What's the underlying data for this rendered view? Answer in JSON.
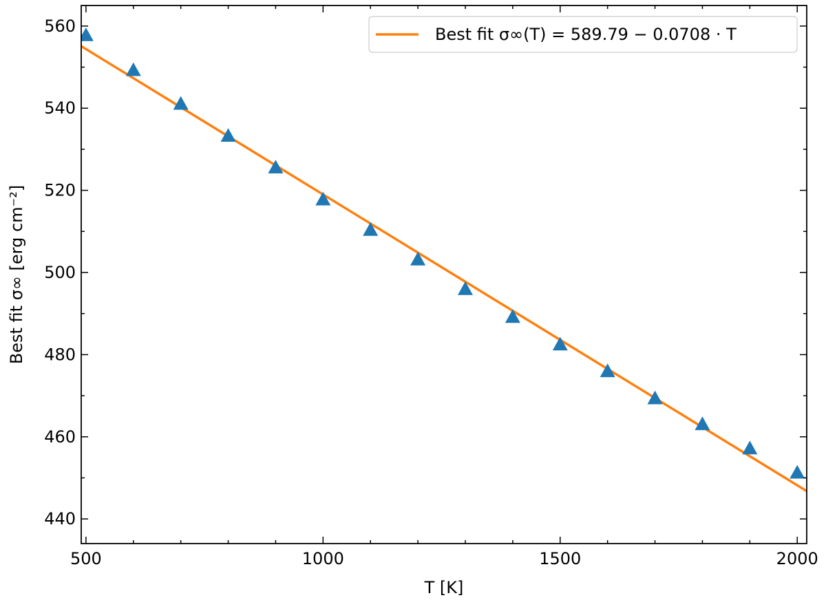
{
  "chart_data": {
    "type": "scatter",
    "xlabel": "T [K]",
    "ylabel": "Best fit σ∞ [erg cm⁻²]",
    "xlim": [
      490,
      2020
    ],
    "ylim": [
      434,
      565
    ],
    "xticks": [
      500,
      1000,
      1500,
      2000
    ],
    "yticks": [
      440,
      460,
      480,
      500,
      520,
      540,
      560
    ],
    "grid": false,
    "legend_position": "top-right",
    "series": [
      {
        "type": "scatter",
        "marker": "triangle",
        "color": "#1f77b4",
        "x": [
          500,
          600,
          700,
          800,
          900,
          1000,
          1100,
          1200,
          1300,
          1400,
          1500,
          1600,
          1700,
          1800,
          1900,
          2000
        ],
        "y": [
          557.8,
          549.3,
          541.1,
          533.3,
          525.6,
          517.8,
          510.4,
          503.2,
          496.0,
          489.2,
          482.5,
          476.0,
          469.4,
          463.1,
          457.2,
          451.3
        ]
      },
      {
        "type": "line",
        "name": "Best fit σ∞(T) = 589.79 − 0.0708 · T",
        "color": "#ff7f0e",
        "intercept": 589.79,
        "slope": -0.0708
      }
    ]
  }
}
